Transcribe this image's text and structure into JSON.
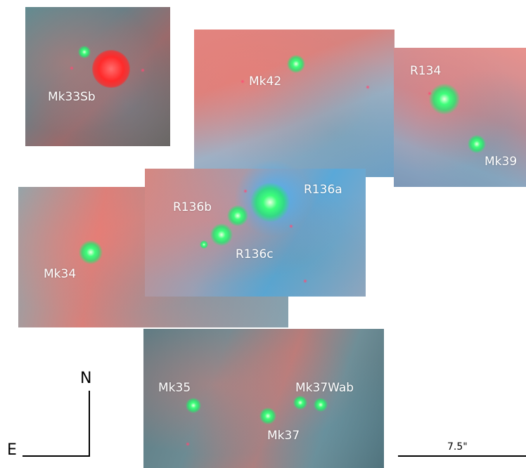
{
  "image": {
    "description_colors": {
      "accent_green": "#3dff7a",
      "accent_red": "#ff2a2a"
    },
    "labels": {
      "mk33sb": "Mk33Sb",
      "mk42": "Mk42",
      "r134": "R134",
      "mk39": "Mk39",
      "r136a": "R136a",
      "r136b": "R136b",
      "r136c": "R136c",
      "mk34": "Mk34",
      "mk35": "Mk35",
      "mk37wab": "Mk37Wab",
      "mk37": "Mk37"
    },
    "compass": {
      "north": "N",
      "east": "E"
    },
    "scale_bar": {
      "label": "7.5\""
    }
  }
}
